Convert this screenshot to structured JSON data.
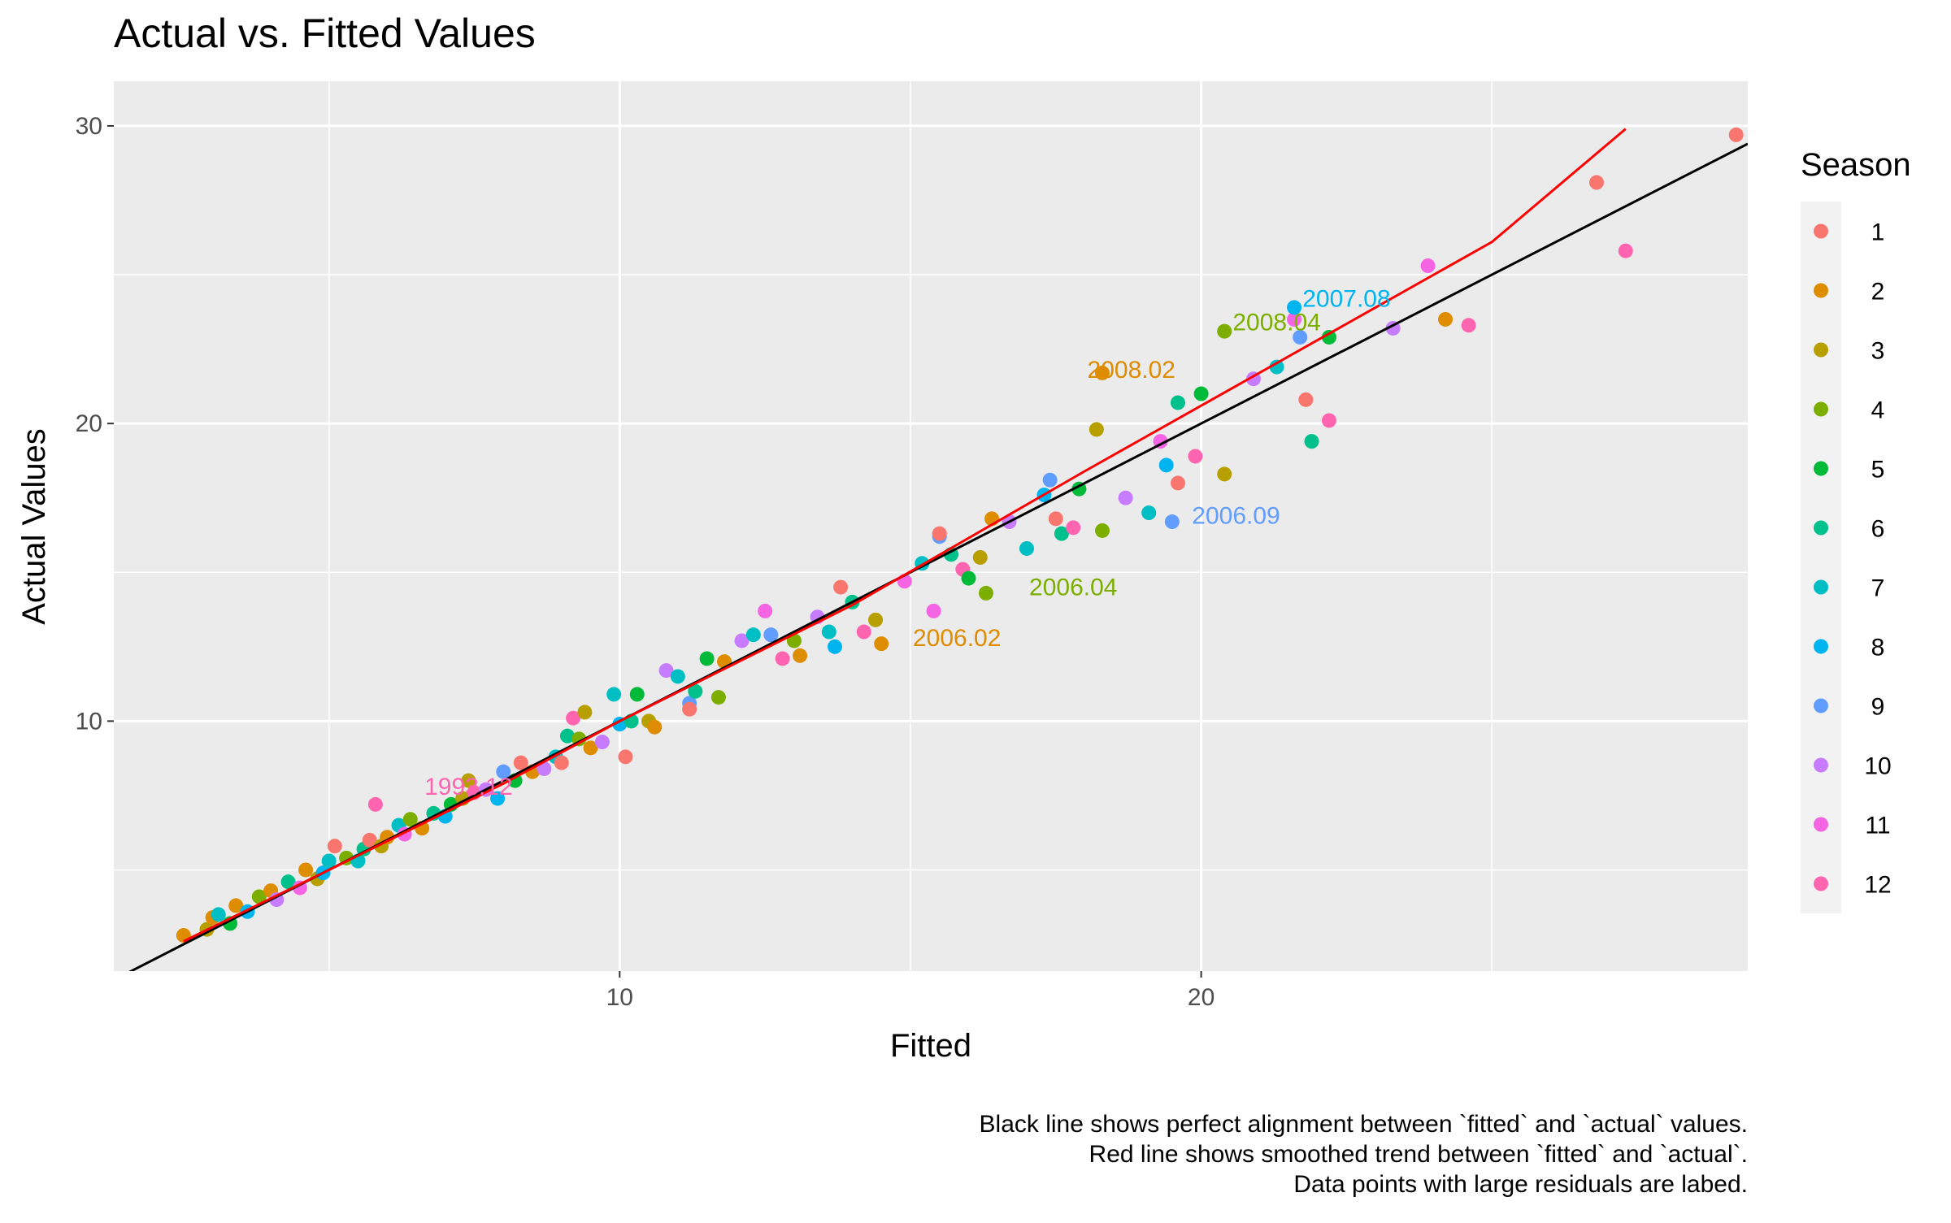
{
  "chart_data": {
    "type": "scatter",
    "title": "Actual vs. Fitted Values",
    "xlabel": "Fitted",
    "ylabel": "Actual Values",
    "caption": [
      "Black line shows perfect alignment between `fitted` and `actual` values.",
      "Red line shows smoothed trend between `fitted` and `actual`.",
      "Data points with large residuals are labed."
    ],
    "xlim": [
      1.3,
      29.4
    ],
    "ylim": [
      1.6,
      31.5
    ],
    "x_ticks": [
      10,
      20
    ],
    "y_ticks": [
      10,
      20,
      30
    ],
    "grid": true,
    "legend": {
      "title": "Season",
      "position": "right",
      "entries": [
        "1",
        "2",
        "3",
        "4",
        "5",
        "6",
        "7",
        "8",
        "9",
        "10",
        "11",
        "12"
      ]
    },
    "colors": {
      "1": "#F8766D",
      "2": "#DE8C00",
      "3": "#B79F00",
      "4": "#7CAE00",
      "5": "#00BA38",
      "6": "#00C08B",
      "7": "#00BFC4",
      "8": "#00B4F0",
      "9": "#619CFF",
      "10": "#C77CFF",
      "11": "#F564E3",
      "12": "#FF64B0",
      "panel_bg": "#EBEBEB",
      "identity_line": "#000000",
      "trend_line": "#FF0000"
    },
    "identity_line": [
      [
        1.3,
        1.3
      ],
      [
        29.4,
        29.4
      ]
    ],
    "trend_line": [
      [
        2.5,
        2.6
      ],
      [
        5.0,
        5.0
      ],
      [
        8.0,
        7.9
      ],
      [
        10.0,
        10.0
      ],
      [
        14.0,
        13.9
      ],
      [
        18.0,
        18.4
      ],
      [
        22.0,
        22.8
      ],
      [
        25.0,
        26.1
      ],
      [
        27.3,
        29.9
      ]
    ],
    "labels": [
      {
        "text": "1993.12",
        "x": 7.4,
        "y": 7.8,
        "season": 12
      },
      {
        "text": "2008.02",
        "x": 18.8,
        "y": 21.8,
        "season": 2
      },
      {
        "text": "2008.04",
        "x": 21.3,
        "y": 23.4,
        "season": 4
      },
      {
        "text": "2007.08",
        "x": 22.5,
        "y": 24.2,
        "season": 8
      },
      {
        "text": "2006.09",
        "x": 20.6,
        "y": 16.9,
        "season": 9
      },
      {
        "text": "2006.04",
        "x": 17.8,
        "y": 14.5,
        "season": 4
      },
      {
        "text": "2006.02",
        "x": 15.8,
        "y": 12.8,
        "season": 2
      }
    ],
    "points": [
      {
        "x": 2.5,
        "y": 2.8,
        "s": 2
      },
      {
        "x": 2.9,
        "y": 3.0,
        "s": 3
      },
      {
        "x": 3.0,
        "y": 3.4,
        "s": 2
      },
      {
        "x": 3.1,
        "y": 3.5,
        "s": 7
      },
      {
        "x": 3.3,
        "y": 3.2,
        "s": 5
      },
      {
        "x": 3.4,
        "y": 3.8,
        "s": 2
      },
      {
        "x": 3.6,
        "y": 3.6,
        "s": 8
      },
      {
        "x": 3.8,
        "y": 4.1,
        "s": 4
      },
      {
        "x": 4.0,
        "y": 4.3,
        "s": 2
      },
      {
        "x": 4.1,
        "y": 4.0,
        "s": 10
      },
      {
        "x": 4.3,
        "y": 4.6,
        "s": 6
      },
      {
        "x": 4.5,
        "y": 4.4,
        "s": 11
      },
      {
        "x": 4.6,
        "y": 5.0,
        "s": 2
      },
      {
        "x": 4.8,
        "y": 4.7,
        "s": 3
      },
      {
        "x": 4.9,
        "y": 4.9,
        "s": 8
      },
      {
        "x": 5.0,
        "y": 5.3,
        "s": 7
      },
      {
        "x": 5.1,
        "y": 5.8,
        "s": 1
      },
      {
        "x": 5.3,
        "y": 5.4,
        "s": 4
      },
      {
        "x": 5.5,
        "y": 5.3,
        "s": 7
      },
      {
        "x": 5.6,
        "y": 5.7,
        "s": 6
      },
      {
        "x": 5.7,
        "y": 6.0,
        "s": 1
      },
      {
        "x": 5.9,
        "y": 5.8,
        "s": 3
      },
      {
        "x": 6.0,
        "y": 6.1,
        "s": 2
      },
      {
        "x": 5.8,
        "y": 7.2,
        "s": 12
      },
      {
        "x": 6.2,
        "y": 6.5,
        "s": 7
      },
      {
        "x": 6.3,
        "y": 6.2,
        "s": 11
      },
      {
        "x": 6.4,
        "y": 6.7,
        "s": 4
      },
      {
        "x": 6.6,
        "y": 6.4,
        "s": 2
      },
      {
        "x": 6.8,
        "y": 6.9,
        "s": 6
      },
      {
        "x": 7.0,
        "y": 6.8,
        "s": 8
      },
      {
        "x": 7.1,
        "y": 7.2,
        "s": 5
      },
      {
        "x": 7.3,
        "y": 7.4,
        "s": 3
      },
      {
        "x": 7.4,
        "y": 8.0,
        "s": 3
      },
      {
        "x": 7.5,
        "y": 7.6,
        "s": 12
      },
      {
        "x": 7.7,
        "y": 7.7,
        "s": 10
      },
      {
        "x": 7.9,
        "y": 7.4,
        "s": 8
      },
      {
        "x": 8.0,
        "y": 8.3,
        "s": 9
      },
      {
        "x": 8.2,
        "y": 8.0,
        "s": 5
      },
      {
        "x": 8.3,
        "y": 8.6,
        "s": 1
      },
      {
        "x": 8.5,
        "y": 8.3,
        "s": 2
      },
      {
        "x": 8.7,
        "y": 8.4,
        "s": 10
      },
      {
        "x": 8.9,
        "y": 8.8,
        "s": 7
      },
      {
        "x": 9.0,
        "y": 8.6,
        "s": 1
      },
      {
        "x": 9.1,
        "y": 9.5,
        "s": 6
      },
      {
        "x": 9.2,
        "y": 10.1,
        "s": 12
      },
      {
        "x": 9.3,
        "y": 9.4,
        "s": 4
      },
      {
        "x": 9.4,
        "y": 10.3,
        "s": 3
      },
      {
        "x": 9.5,
        "y": 9.1,
        "s": 2
      },
      {
        "x": 9.7,
        "y": 9.3,
        "s": 10
      },
      {
        "x": 9.9,
        "y": 10.9,
        "s": 7
      },
      {
        "x": 10.0,
        "y": 9.9,
        "s": 8
      },
      {
        "x": 10.1,
        "y": 8.8,
        "s": 1
      },
      {
        "x": 10.2,
        "y": 10.0,
        "s": 6
      },
      {
        "x": 10.3,
        "y": 10.9,
        "s": 5
      },
      {
        "x": 10.5,
        "y": 10.0,
        "s": 3
      },
      {
        "x": 10.6,
        "y": 9.8,
        "s": 2
      },
      {
        "x": 10.8,
        "y": 11.7,
        "s": 10
      },
      {
        "x": 11.0,
        "y": 11.5,
        "s": 7
      },
      {
        "x": 11.2,
        "y": 10.6,
        "s": 9
      },
      {
        "x": 11.2,
        "y": 10.4,
        "s": 1
      },
      {
        "x": 11.3,
        "y": 11.0,
        "s": 6
      },
      {
        "x": 11.5,
        "y": 12.1,
        "s": 5
      },
      {
        "x": 11.7,
        "y": 10.8,
        "s": 4
      },
      {
        "x": 11.8,
        "y": 12.0,
        "s": 2
      },
      {
        "x": 12.1,
        "y": 12.7,
        "s": 10
      },
      {
        "x": 12.3,
        "y": 12.9,
        "s": 7
      },
      {
        "x": 12.5,
        "y": 13.7,
        "s": 11
      },
      {
        "x": 12.6,
        "y": 12.9,
        "s": 9
      },
      {
        "x": 12.8,
        "y": 12.1,
        "s": 12
      },
      {
        "x": 13.0,
        "y": 12.7,
        "s": 4
      },
      {
        "x": 13.1,
        "y": 12.2,
        "s": 2
      },
      {
        "x": 13.4,
        "y": 13.5,
        "s": 10
      },
      {
        "x": 13.6,
        "y": 13.0,
        "s": 7
      },
      {
        "x": 13.7,
        "y": 12.5,
        "s": 8
      },
      {
        "x": 13.8,
        "y": 14.5,
        "s": 1
      },
      {
        "x": 14.0,
        "y": 14.0,
        "s": 6
      },
      {
        "x": 14.2,
        "y": 13.0,
        "s": 12
      },
      {
        "x": 14.4,
        "y": 13.4,
        "s": 3
      },
      {
        "x": 14.5,
        "y": 12.6,
        "s": 2
      },
      {
        "x": 14.9,
        "y": 14.7,
        "s": 11
      },
      {
        "x": 15.2,
        "y": 15.3,
        "s": 7
      },
      {
        "x": 15.4,
        "y": 13.7,
        "s": 11
      },
      {
        "x": 15.5,
        "y": 16.2,
        "s": 9
      },
      {
        "x": 15.5,
        "y": 16.3,
        "s": 1
      },
      {
        "x": 15.7,
        "y": 15.6,
        "s": 6
      },
      {
        "x": 15.9,
        "y": 15.1,
        "s": 12
      },
      {
        "x": 16.0,
        "y": 14.8,
        "s": 5
      },
      {
        "x": 16.2,
        "y": 15.5,
        "s": 3
      },
      {
        "x": 16.3,
        "y": 14.3,
        "s": 4
      },
      {
        "x": 16.4,
        "y": 16.8,
        "s": 2
      },
      {
        "x": 16.7,
        "y": 16.7,
        "s": 10
      },
      {
        "x": 17.0,
        "y": 15.8,
        "s": 7
      },
      {
        "x": 17.3,
        "y": 17.6,
        "s": 8
      },
      {
        "x": 17.4,
        "y": 18.1,
        "s": 9
      },
      {
        "x": 17.5,
        "y": 16.8,
        "s": 1
      },
      {
        "x": 17.6,
        "y": 16.3,
        "s": 6
      },
      {
        "x": 17.8,
        "y": 16.5,
        "s": 12
      },
      {
        "x": 17.9,
        "y": 17.8,
        "s": 5
      },
      {
        "x": 18.2,
        "y": 19.8,
        "s": 3
      },
      {
        "x": 18.3,
        "y": 21.7,
        "s": 2
      },
      {
        "x": 18.3,
        "y": 16.4,
        "s": 4
      },
      {
        "x": 18.7,
        "y": 17.5,
        "s": 10
      },
      {
        "x": 19.1,
        "y": 17.0,
        "s": 7
      },
      {
        "x": 19.3,
        "y": 19.4,
        "s": 11
      },
      {
        "x": 19.4,
        "y": 18.6,
        "s": 8
      },
      {
        "x": 19.5,
        "y": 16.7,
        "s": 9
      },
      {
        "x": 19.6,
        "y": 18.0,
        "s": 1
      },
      {
        "x": 19.6,
        "y": 20.7,
        "s": 6
      },
      {
        "x": 19.9,
        "y": 18.9,
        "s": 12
      },
      {
        "x": 20.0,
        "y": 21.0,
        "s": 5
      },
      {
        "x": 20.4,
        "y": 18.3,
        "s": 3
      },
      {
        "x": 20.4,
        "y": 23.1,
        "s": 4
      },
      {
        "x": 20.9,
        "y": 21.5,
        "s": 10
      },
      {
        "x": 21.3,
        "y": 21.9,
        "s": 7
      },
      {
        "x": 21.6,
        "y": 23.5,
        "s": 11
      },
      {
        "x": 21.6,
        "y": 23.9,
        "s": 8
      },
      {
        "x": 21.7,
        "y": 22.9,
        "s": 9
      },
      {
        "x": 21.8,
        "y": 20.8,
        "s": 1
      },
      {
        "x": 21.9,
        "y": 19.4,
        "s": 6
      },
      {
        "x": 22.2,
        "y": 20.1,
        "s": 12
      },
      {
        "x": 22.2,
        "y": 22.9,
        "s": 5
      },
      {
        "x": 23.3,
        "y": 23.2,
        "s": 10
      },
      {
        "x": 23.9,
        "y": 25.3,
        "s": 11
      },
      {
        "x": 24.2,
        "y": 23.5,
        "s": 2
      },
      {
        "x": 24.6,
        "y": 23.3,
        "s": 12
      },
      {
        "x": 26.8,
        "y": 28.1,
        "s": 1
      },
      {
        "x": 27.3,
        "y": 25.8,
        "s": 12
      },
      {
        "x": 29.2,
        "y": 29.7,
        "s": 1
      }
    ]
  }
}
